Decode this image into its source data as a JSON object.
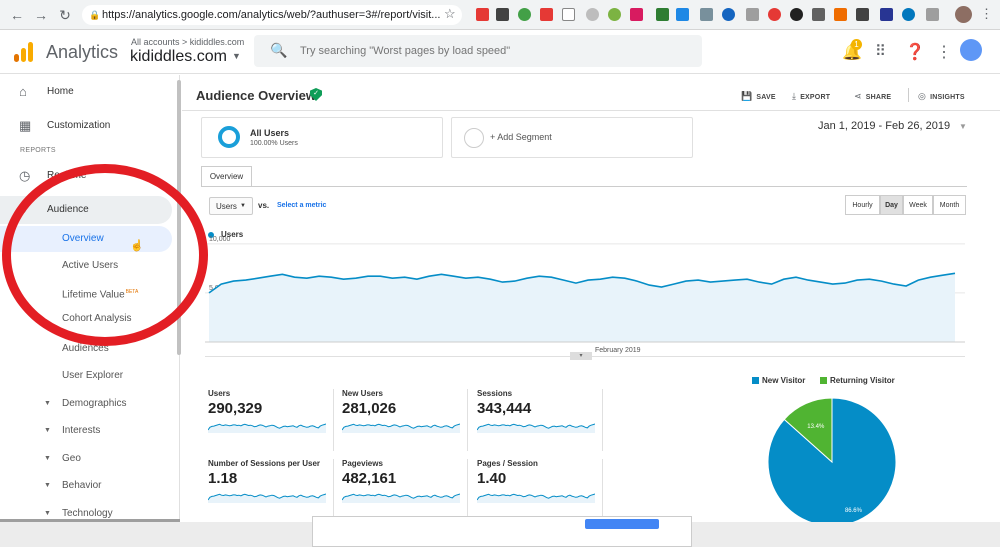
{
  "browser": {
    "url": "https://analytics.google.com/analytics/web/?authuser=3#/report/visit..."
  },
  "header": {
    "app_title": "Analytics",
    "account_crumb": "All accounts > kididdles.com",
    "account_name": "kididdles.com",
    "search_placeholder": "Try searching \"Worst pages by load speed\"",
    "notification_count": "1"
  },
  "sidebar": {
    "home": "Home",
    "customization": "Customization",
    "section_reports": "REPORTS",
    "realtime": "Realtime",
    "audience": "Audience",
    "audience_items": [
      {
        "label": "Overview",
        "selected": true
      },
      {
        "label": "Active Users"
      },
      {
        "label": "Lifetime Value",
        "badge": "BETA"
      },
      {
        "label": "Cohort Analysis"
      },
      {
        "label": "Audiences"
      },
      {
        "label": "User Explorer"
      },
      {
        "label": "Demographics",
        "expandable": true
      },
      {
        "label": "Interests",
        "expandable": true
      },
      {
        "label": "Geo",
        "expandable": true
      },
      {
        "label": "Behavior",
        "expandable": true
      },
      {
        "label": "Technology",
        "expandable": true
      }
    ]
  },
  "report": {
    "title": "Audience Overview",
    "actions": {
      "save": "SAVE",
      "export": "EXPORT",
      "share": "SHARE",
      "insights": "INSIGHTS"
    },
    "segment": {
      "name": "All Users",
      "percent": "100.00% Users",
      "add": "+ Add Segment"
    },
    "date_range": "Jan 1, 2019 - Feb 26, 2019",
    "tab": "Overview",
    "metric_selector": "Users",
    "vs": "vs.",
    "select_metric": "Select a metric",
    "granularity": [
      "Hourly",
      "Day",
      "Week",
      "Month"
    ],
    "active_granularity": "Day"
  },
  "chart_data": [
    {
      "type": "area",
      "series": [
        {
          "name": "Users",
          "values": [
            5000,
            5900,
            6200,
            6300,
            6500,
            6700,
            6900,
            6600,
            6500,
            6700,
            6600,
            6400,
            6500,
            6700,
            6700,
            6500,
            6600,
            6400,
            6700,
            6900,
            6700,
            6500,
            6600,
            6400,
            6100,
            6200,
            6500,
            6700,
            6600,
            6300,
            6000,
            6300,
            6400,
            6600,
            6500,
            6200,
            5800,
            5600,
            5900,
            6200,
            6300,
            6100,
            6200,
            6300,
            6400,
            6100,
            5900,
            6400,
            6600,
            6300,
            6100,
            5900,
            6000,
            6300,
            6400,
            6200,
            5900,
            5700,
            6300,
            6600,
            6800,
            7000
          ]
        }
      ],
      "y_ticks": [
        "10,000",
        "5,000"
      ],
      "x_label": "February 2019",
      "ylim": [
        0,
        11000
      ]
    },
    {
      "type": "pie",
      "series": [
        {
          "name": "New Visitor",
          "value": 86.6,
          "label": "86.6%",
          "color": "#058dc7"
        },
        {
          "name": "Returning Visitor",
          "value": 13.4,
          "label": "13.4%",
          "color": "#50b432"
        }
      ]
    }
  ],
  "metrics": [
    {
      "name": "Users",
      "value": "290,329"
    },
    {
      "name": "New Users",
      "value": "281,026"
    },
    {
      "name": "Sessions",
      "value": "343,444"
    },
    {
      "name": "Number of Sessions per User",
      "value": "1.18"
    },
    {
      "name": "Pageviews",
      "value": "482,161"
    },
    {
      "name": "Pages / Session",
      "value": "1.40"
    }
  ],
  "colors": {
    "accent": "#1a73e8",
    "series": "#058dc7",
    "annotation": "#e31e24"
  }
}
